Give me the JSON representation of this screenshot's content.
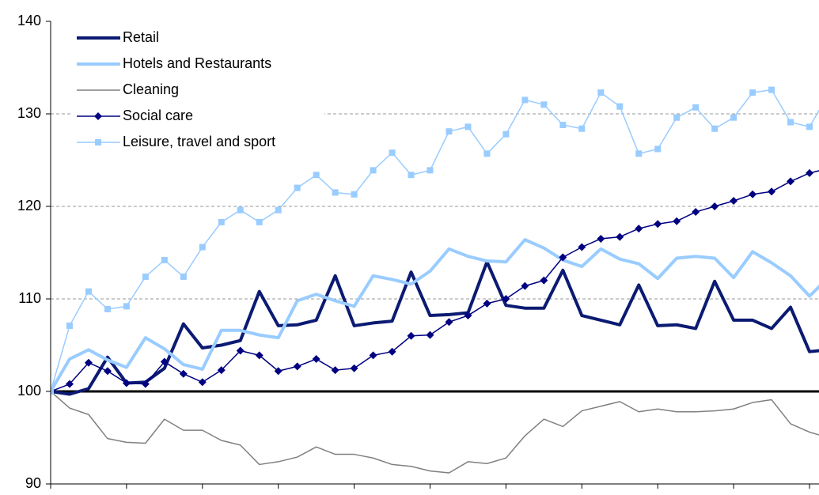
{
  "chart_data": {
    "type": "line",
    "x": [
      1999,
      1999.25,
      1999.5,
      1999.75,
      2000,
      2000.25,
      2000.5,
      2000.75,
      2001,
      2001.25,
      2001.5,
      2001.75,
      2002,
      2002.25,
      2002.5,
      2002.75,
      2003,
      2003.25,
      2003.5,
      2003.75,
      2004,
      2004.25,
      2004.5,
      2004.75,
      2005,
      2005.25,
      2005.5,
      2005.75,
      2006,
      2006.25,
      2006.5,
      2006.75,
      2007,
      2007.25,
      2007.5,
      2007.75,
      2008,
      2008.25,
      2008.5,
      2008.75,
      2009,
      2009.25
    ],
    "series": [
      {
        "name": "Retail",
        "color": "#0b1a72",
        "width": 4,
        "marker": "none",
        "values": [
          100,
          99.7,
          100.3,
          103.7,
          100.9,
          101.0,
          102.5,
          107.3,
          104.7,
          105.0,
          105.5,
          110.8,
          107.1,
          107.2,
          107.7,
          112.5,
          107.1,
          107.4,
          107.6,
          112.9,
          108.2,
          108.3,
          108.5,
          114.0,
          109.3,
          109.0,
          109.0,
          113.1,
          108.2,
          107.7,
          107.2,
          111.5,
          107.1,
          107.2,
          106.8,
          111.9,
          107.7,
          107.7,
          106.8,
          109.1,
          104.3,
          104.5
        ]
      },
      {
        "name": "Hotels and Restaurants",
        "color": "#99ccff",
        "width": 4,
        "marker": "none",
        "values": [
          100,
          103.5,
          104.5,
          103.4,
          102.6,
          105.8,
          104.6,
          102.9,
          102.4,
          106.6,
          106.6,
          106.1,
          105.8,
          109.8,
          110.5,
          109.8,
          109.2,
          112.5,
          112.1,
          111.6,
          113.0,
          115.4,
          114.6,
          114.1,
          114.0,
          116.4,
          115.5,
          114.2,
          113.5,
          115.4,
          114.3,
          113.8,
          112.2,
          114.4,
          114.6,
          114.4,
          112.3,
          115.1,
          113.9,
          112.5,
          110.3,
          112.3
        ]
      },
      {
        "name": "Cleaning",
        "color": "#808080",
        "width": 1.5,
        "marker": "none",
        "values": [
          100,
          98.2,
          97.5,
          94.9,
          94.5,
          94.4,
          97.0,
          95.8,
          95.8,
          94.7,
          94.2,
          92.1,
          92.4,
          92.9,
          94.0,
          93.2,
          93.2,
          92.8,
          92.1,
          91.9,
          91.4,
          91.2,
          92.4,
          92.2,
          92.8,
          95.2,
          97.0,
          96.2,
          97.9,
          98.4,
          98.9,
          97.8,
          98.1,
          97.8,
          97.8,
          97.9,
          98.1,
          98.8,
          99.1,
          96.5,
          95.6,
          95.0
        ]
      },
      {
        "name": "Social care",
        "color": "#000080",
        "width": 1.5,
        "marker": "diamond",
        "values": [
          100,
          100.8,
          103.1,
          102.2,
          100.9,
          100.8,
          103.2,
          101.9,
          101.0,
          102.3,
          104.4,
          103.9,
          102.2,
          102.7,
          103.5,
          102.3,
          102.5,
          103.9,
          104.3,
          106.0,
          106.1,
          107.5,
          108.2,
          109.5,
          110.0,
          111.4,
          112.0,
          114.5,
          115.6,
          116.5,
          116.7,
          117.6,
          118.1,
          118.4,
          119.4,
          120.0,
          120.6,
          121.3,
          121.6,
          122.7,
          123.6,
          124.1
        ]
      },
      {
        "name": "Leisure, travel and sport",
        "color": "#99ccff",
        "width": 1.5,
        "marker": "square",
        "values": [
          100,
          107.1,
          110.8,
          108.9,
          109.2,
          112.4,
          114.2,
          112.4,
          115.6,
          118.3,
          119.6,
          118.3,
          119.6,
          122.0,
          123.4,
          121.5,
          121.3,
          123.9,
          125.8,
          123.4,
          123.9,
          128.1,
          128.6,
          125.7,
          127.8,
          131.5,
          131.0,
          128.8,
          128.4,
          132.3,
          130.8,
          125.7,
          126.2,
          129.6,
          130.7,
          128.4,
          129.6,
          132.3,
          132.6,
          129.1,
          128.6,
          132.1
        ]
      }
    ],
    "reference_line": 100,
    "xlim": [
      1999,
      2009.125
    ],
    "xticks": [
      1999,
      2000,
      2001,
      2002,
      2003,
      2004,
      2005,
      2006,
      2007,
      2008,
      2009
    ],
    "ylim": [
      90,
      140
    ],
    "yticks": [
      90,
      100,
      110,
      120,
      130,
      140
    ],
    "grid": true,
    "legend": "upper left"
  }
}
